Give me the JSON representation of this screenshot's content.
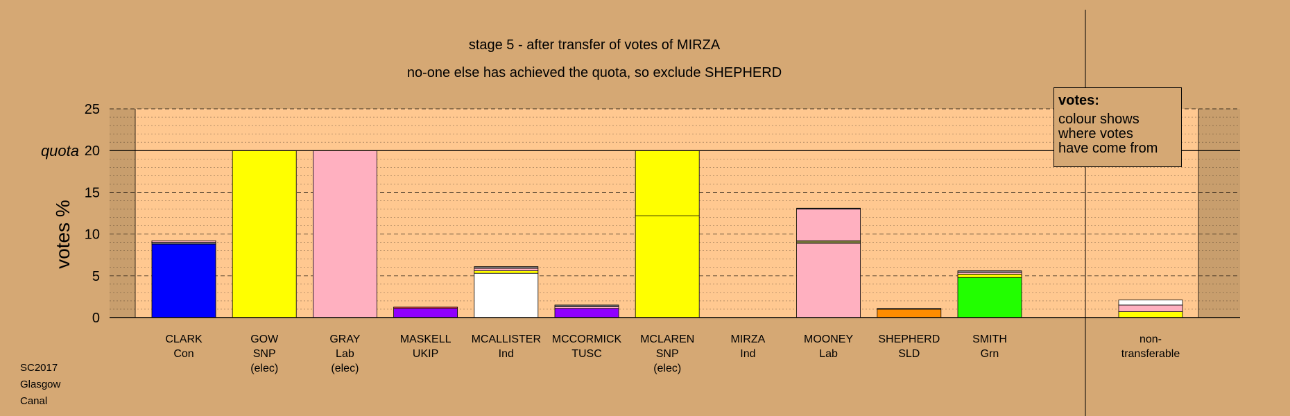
{
  "chart_data": {
    "type": "bar",
    "stacked": true,
    "title": "stage 5 - after transfer of votes of MIRZA",
    "subtitle": "no-one else has achieved the quota, so exclude SHEPHERD",
    "ylabel": "votes %",
    "ylim": [
      0,
      25
    ],
    "yticks": [
      0,
      5,
      10,
      15,
      20,
      25
    ],
    "quota": 20,
    "quota_label": "quota",
    "grid": "dashed horizontal every 1%",
    "categories": [
      {
        "name": "CLARK",
        "party": "Con",
        "status": ""
      },
      {
        "name": "GOW",
        "party": "SNP",
        "status": "(elec)"
      },
      {
        "name": "GRAY",
        "party": "Lab",
        "status": "(elec)"
      },
      {
        "name": "MASKELL",
        "party": "UKIP",
        "status": ""
      },
      {
        "name": "MCALLISTER",
        "party": "Ind",
        "status": ""
      },
      {
        "name": "MCCORMICK",
        "party": "TUSC",
        "status": ""
      },
      {
        "name": "MCLAREN",
        "party": "SNP",
        "status": "(elec)"
      },
      {
        "name": "MIRZA",
        "party": "Ind",
        "status": ""
      },
      {
        "name": "MOONEY",
        "party": "Lab",
        "status": ""
      },
      {
        "name": "SHEPHERD",
        "party": "SLD",
        "status": ""
      },
      {
        "name": "SMITH",
        "party": "Grn",
        "status": ""
      }
    ],
    "bars": [
      [
        {
          "value": 8.8,
          "color": "#0000ff"
        },
        {
          "value": 0.2,
          "color": "#808080"
        },
        {
          "value": 0.2,
          "color": "#ffb0c0"
        }
      ],
      [
        {
          "value": 20.0,
          "color": "#ffff00"
        }
      ],
      [
        {
          "value": 20.0,
          "color": "#ffb0c0"
        }
      ],
      [
        {
          "value": 1.1,
          "color": "#9000ff"
        },
        {
          "value": 0.15,
          "color": "#ff5050"
        }
      ],
      [
        {
          "value": 5.3,
          "color": "#ffffff"
        },
        {
          "value": 0.3,
          "color": "#ffff00"
        },
        {
          "value": 0.3,
          "color": "#ffb0c0"
        },
        {
          "value": 0.2,
          "color": "#808080"
        }
      ],
      [
        {
          "value": 1.1,
          "color": "#9000ff"
        },
        {
          "value": 0.2,
          "color": "#ffb0c0"
        },
        {
          "value": 0.2,
          "color": "#808080"
        }
      ],
      [
        {
          "value": 12.2,
          "color": "#ffff00"
        },
        {
          "value": 7.8,
          "color": "#ffff00"
        }
      ],
      [],
      [
        {
          "value": 8.9,
          "color": "#ffb0c0"
        },
        {
          "value": 0.3,
          "color": "#808040"
        },
        {
          "value": 3.8,
          "color": "#ffb0c0"
        },
        {
          "value": 0.1,
          "color": "#404040"
        }
      ],
      [
        {
          "value": 1.0,
          "color": "#ff8c00"
        },
        {
          "value": 0.1,
          "color": "#808080"
        }
      ],
      [
        {
          "value": 4.8,
          "color": "#22ff00"
        },
        {
          "value": 0.4,
          "color": "#ffff00"
        },
        {
          "value": 0.2,
          "color": "#ffb0c0"
        },
        {
          "value": 0.2,
          "color": "#808080"
        }
      ]
    ],
    "nontransferable": {
      "label_line1": "non-",
      "label_line2": "transferable",
      "segments": [
        {
          "value": 0.7,
          "color": "#ffff00"
        },
        {
          "value": 0.8,
          "color": "#ffb0c0"
        },
        {
          "value": 0.6,
          "color": "#ffffff"
        }
      ]
    },
    "legend": {
      "title": "votes:",
      "line1": "colour shows",
      "line2": "where votes",
      "line3": "have come from",
      "position": "top-right"
    }
  },
  "footer": {
    "line1": "SC2017",
    "line2": "Glasgow",
    "line3": "Canal"
  },
  "colors": {
    "background": "#d5a874",
    "plot_area": "#ffc890"
  }
}
